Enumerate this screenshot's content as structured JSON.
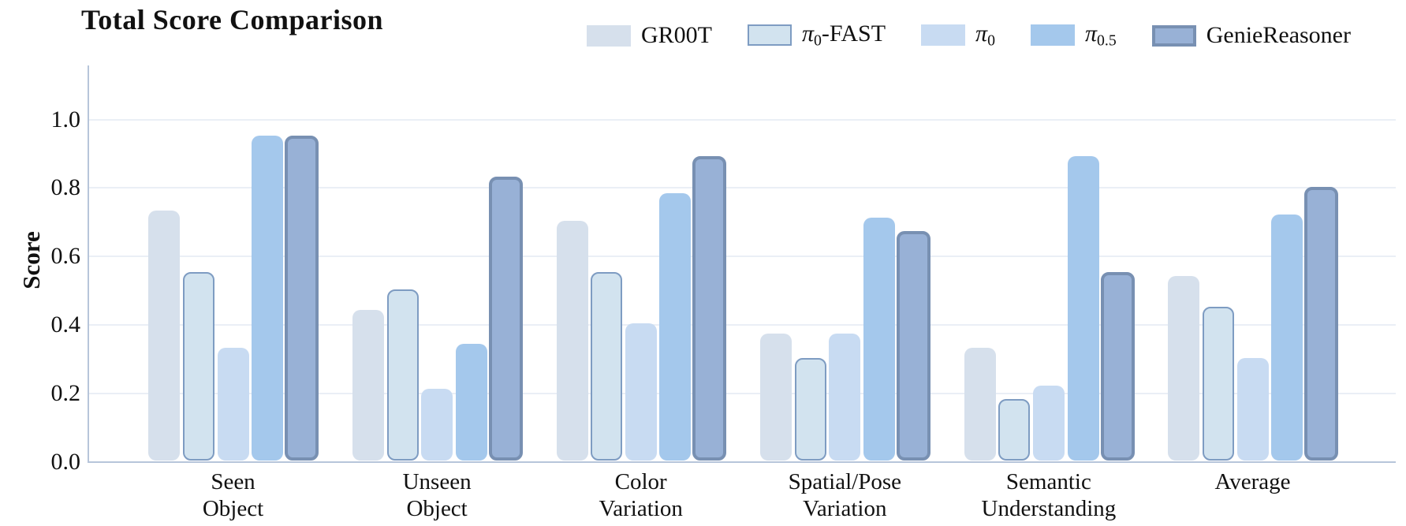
{
  "title": "Total Score Comparison",
  "chart_data": {
    "type": "bar",
    "title": "Total Score Comparison",
    "xlabel": "",
    "ylabel": "Score",
    "ylim": [
      0,
      1.08
    ],
    "yticks": [
      0.0,
      0.2,
      0.4,
      0.6,
      0.8,
      1.0
    ],
    "ytick_labels": [
      "0.0",
      "0.2",
      "0.4",
      "0.6",
      "0.8",
      "1.0"
    ],
    "grid": true,
    "legend_position": "top",
    "categories": [
      "Seen\nObject",
      "Unseen\nObject",
      "Color\nVariation",
      "Spatial/Pose\nVariation",
      "Semantic\nUnderstanding",
      "Average"
    ],
    "series": [
      {
        "name": "GR00T",
        "label_parts": [
          {
            "text": "GR00T"
          }
        ],
        "color": "#d6e0ec",
        "border_color": null,
        "border_width": 0,
        "values": [
          0.73,
          0.44,
          0.7,
          0.37,
          0.33,
          0.54
        ]
      },
      {
        "name": "pi0-FAST",
        "label_parts": [
          {
            "text": "π",
            "italic": true
          },
          {
            "text": "0",
            "sub": true
          },
          {
            "text": "-FAST"
          }
        ],
        "color": "#d2e3ef",
        "border_color": "#7e9cc2",
        "border_width": 2,
        "values": [
          0.55,
          0.5,
          0.55,
          0.3,
          0.18,
          0.45
        ]
      },
      {
        "name": "pi0",
        "label_parts": [
          {
            "text": "π",
            "italic": true
          },
          {
            "text": "0",
            "sub": true
          }
        ],
        "color": "#c8dbf2",
        "border_color": null,
        "border_width": 0,
        "values": [
          0.33,
          0.21,
          0.4,
          0.37,
          0.22,
          0.3
        ]
      },
      {
        "name": "pi0.5",
        "label_parts": [
          {
            "text": "π",
            "italic": true
          },
          {
            "text": "0.5",
            "sub": true
          }
        ],
        "color": "#a4c8ec",
        "border_color": null,
        "border_width": 0,
        "values": [
          0.95,
          0.34,
          0.78,
          0.71,
          0.89,
          0.72
        ]
      },
      {
        "name": "GenieReasoner",
        "label_parts": [
          {
            "text": "GenieReasoner"
          }
        ],
        "color": "#98b1d6",
        "border_color": "#7890b2",
        "border_width": 4,
        "values": [
          0.95,
          0.83,
          0.89,
          0.67,
          0.55,
          0.8
        ]
      }
    ],
    "colors": {
      "grid": "#eaeff6",
      "spine": "#b7c5da",
      "text": "#111111"
    }
  }
}
